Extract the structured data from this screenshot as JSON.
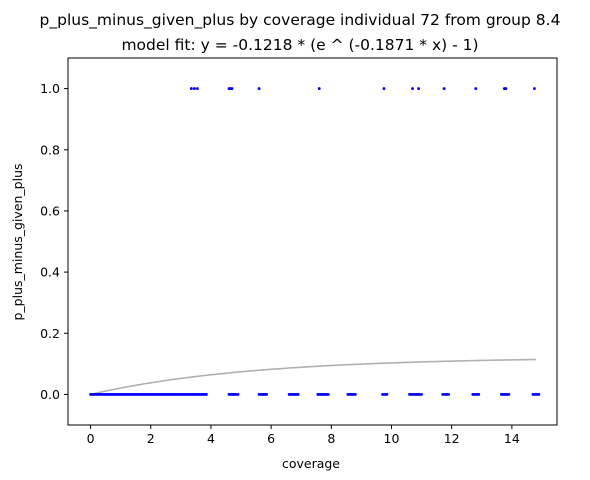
{
  "chart_data": {
    "type": "scatter",
    "title": "p_plus_minus_given_plus by coverage individual 72 from group 8.4",
    "subtitle": "model fit: y = -0.1218 * (e ^ (-0.1871 * x) - 1)",
    "xlabel": "coverage",
    "ylabel": "p_plus_minus_given_plus",
    "xlim": [
      -0.75,
      15.5
    ],
    "ylim": [
      -0.1,
      1.1
    ],
    "xticks": [
      0,
      2,
      4,
      6,
      8,
      10,
      12,
      14
    ],
    "yticks": [
      0.0,
      0.2,
      0.4,
      0.6,
      0.8,
      1.0
    ],
    "xtick_labels": [
      "0",
      "2",
      "4",
      "6",
      "8",
      "10",
      "12",
      "14"
    ],
    "ytick_labels": [
      "0.0",
      "0.2",
      "0.4",
      "0.6",
      "0.8",
      "1.0"
    ],
    "grid": false,
    "series": [
      {
        "kind": "points",
        "color": "#0000ff",
        "y_one_x": [
          3.35,
          3.45,
          3.55,
          4.6,
          4.65,
          4.7,
          5.6,
          7.6,
          9.75,
          10.7,
          10.9,
          11.75,
          12.8,
          13.75,
          13.8,
          14.75
        ],
        "y_zero_x": [
          0.0,
          0.05,
          0.1,
          0.15,
          0.2,
          0.25,
          0.3,
          0.35,
          0.4,
          0.45,
          0.5,
          0.55,
          0.6,
          0.65,
          0.7,
          0.75,
          0.8,
          0.85,
          0.9,
          0.95,
          1.0,
          1.05,
          1.1,
          1.15,
          1.2,
          1.25,
          1.3,
          1.35,
          1.4,
          1.45,
          1.5,
          1.55,
          1.6,
          1.65,
          1.7,
          1.75,
          1.8,
          1.85,
          1.9,
          1.95,
          2.0,
          2.05,
          2.1,
          2.15,
          2.2,
          2.25,
          2.3,
          2.35,
          2.4,
          2.45,
          2.5,
          2.55,
          2.6,
          2.65,
          2.7,
          2.75,
          2.8,
          2.85,
          2.9,
          2.95,
          3.0,
          3.05,
          3.1,
          3.15,
          3.2,
          3.25,
          3.3,
          3.35,
          3.4,
          3.45,
          3.5,
          3.55,
          3.6,
          3.65,
          3.7,
          3.75,
          3.8,
          3.85,
          4.6,
          4.65,
          4.7,
          4.75,
          4.8,
          4.85,
          4.9,
          5.6,
          5.65,
          5.7,
          5.75,
          5.8,
          5.85,
          6.6,
          6.65,
          6.7,
          6.75,
          6.8,
          6.85,
          6.9,
          7.55,
          7.6,
          7.65,
          7.7,
          7.75,
          7.8,
          7.85,
          7.9,
          8.55,
          8.6,
          8.65,
          8.7,
          8.75,
          8.8,
          9.7,
          9.75,
          9.8,
          9.85,
          10.6,
          10.65,
          10.7,
          10.75,
          10.8,
          10.85,
          10.9,
          10.95,
          11.0,
          11.7,
          11.75,
          11.8,
          11.85,
          11.9,
          12.7,
          12.75,
          12.8,
          12.85,
          12.9,
          13.65,
          13.7,
          13.75,
          13.8,
          13.85,
          13.9,
          14.7,
          14.75,
          14.8,
          14.85,
          14.9
        ]
      },
      {
        "kind": "fit",
        "color": "#b0b0b0",
        "a": -0.1218,
        "b": -0.1871,
        "x_range": [
          0,
          14.8
        ]
      }
    ]
  }
}
